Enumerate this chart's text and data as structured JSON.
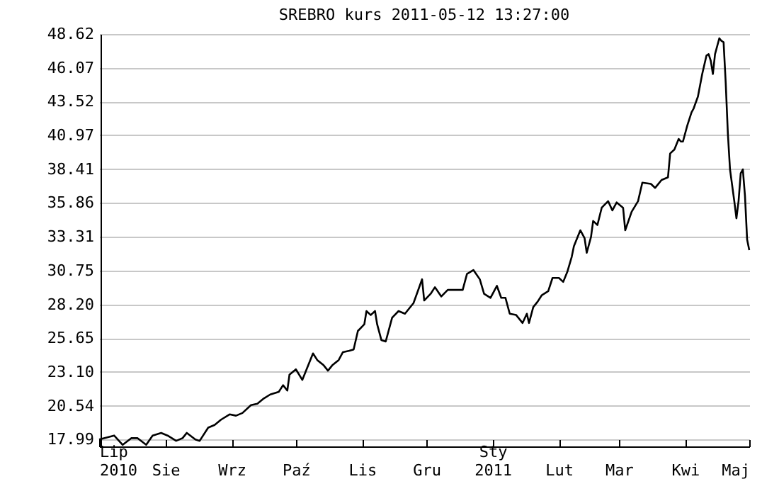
{
  "chart_data": {
    "type": "line",
    "title": "SREBRO kurs  2011-05-12 13:27:00",
    "x": [
      "2010-07-01",
      "2010-07-08",
      "2010-07-12",
      "2010-07-16",
      "2010-07-19",
      "2010-07-23",
      "2010-07-26",
      "2010-07-30",
      "2010-08-02",
      "2010-08-06",
      "2010-08-09",
      "2010-08-11",
      "2010-08-15",
      "2010-08-17",
      "2010-08-21",
      "2010-08-24",
      "2010-08-27",
      "2010-08-31",
      "2010-09-03",
      "2010-09-06",
      "2010-09-10",
      "2010-09-13",
      "2010-09-16",
      "2010-09-19",
      "2010-09-23",
      "2010-09-25",
      "2010-09-27",
      "2010-09-28",
      "2010-10-01",
      "2010-10-04",
      "2010-10-06",
      "2010-10-09",
      "2010-10-11",
      "2010-10-14",
      "2010-10-16",
      "2010-10-18",
      "2010-10-21",
      "2010-10-23",
      "2010-10-26",
      "2010-10-28",
      "2010-10-30",
      "2010-11-02",
      "2010-11-03",
      "2010-11-05",
      "2010-11-07",
      "2010-11-08",
      "2010-11-10",
      "2010-11-12",
      "2010-11-15",
      "2010-11-18",
      "2010-11-21",
      "2010-11-25",
      "2010-11-27",
      "2010-11-29",
      "2010-11-30",
      "2010-12-03",
      "2010-12-05",
      "2010-12-08",
      "2010-12-11",
      "2010-12-15",
      "2010-12-18",
      "2010-12-20",
      "2010-12-23",
      "2010-12-26",
      "2010-12-28",
      "2010-12-31",
      "2011-01-03",
      "2011-01-05",
      "2011-01-07",
      "2011-01-09",
      "2011-01-12",
      "2011-01-15",
      "2011-01-17",
      "2011-01-18",
      "2011-01-20",
      "2011-01-22",
      "2011-01-24",
      "2011-01-27",
      "2011-01-29",
      "2011-02-01",
      "2011-02-03",
      "2011-02-05",
      "2011-02-07",
      "2011-02-08",
      "2011-02-11",
      "2011-02-13",
      "2011-02-14",
      "2011-02-16",
      "2011-02-17",
      "2011-02-19",
      "2011-02-21",
      "2011-02-24",
      "2011-02-26",
      "2011-02-28",
      "2011-03-03",
      "2011-03-04",
      "2011-03-07",
      "2011-03-10",
      "2011-03-12",
      "2011-03-16",
      "2011-03-18",
      "2011-03-21",
      "2011-03-24",
      "2011-03-25",
      "2011-03-27",
      "2011-03-29",
      "2011-03-30",
      "2011-03-31",
      "2011-04-02",
      "2011-04-04",
      "2011-04-05",
      "2011-04-07",
      "2011-04-09",
      "2011-04-11",
      "2011-04-12",
      "2011-04-13",
      "2011-04-14",
      "2011-04-15",
      "2011-04-17",
      "2011-04-18",
      "2011-04-19",
      "2011-04-20",
      "2011-04-21",
      "2011-04-22",
      "2011-04-24",
      "2011-04-25",
      "2011-04-26",
      "2011-04-27",
      "2011-04-28",
      "2011-04-29",
      "2011-04-30",
      "2011-05-01"
    ],
    "series": [
      {
        "color": "#000000",
        "values": [
          18.0,
          18.3,
          17.6,
          18.1,
          18.1,
          17.6,
          18.3,
          18.5,
          18.3,
          17.9,
          18.1,
          18.5,
          18.0,
          17.9,
          18.9,
          19.1,
          19.5,
          19.9,
          19.8,
          20.0,
          20.6,
          20.7,
          21.1,
          21.4,
          21.6,
          22.1,
          21.7,
          22.9,
          23.3,
          22.5,
          23.3,
          24.5,
          24.0,
          23.6,
          23.2,
          23.6,
          24.0,
          24.6,
          24.7,
          24.8,
          26.2,
          26.7,
          27.7,
          27.4,
          27.7,
          26.7,
          25.5,
          25.4,
          27.2,
          27.7,
          27.5,
          28.3,
          29.2,
          30.1,
          28.5,
          29.0,
          29.5,
          28.8,
          29.3,
          29.3,
          29.3,
          30.5,
          30.8,
          30.1,
          29.0,
          28.7,
          29.6,
          28.7,
          28.7,
          27.5,
          27.4,
          26.8,
          27.5,
          26.8,
          28.0,
          28.4,
          28.9,
          29.2,
          30.2,
          30.2,
          29.9,
          30.7,
          31.8,
          32.6,
          33.8,
          33.2,
          32.1,
          33.3,
          34.5,
          34.2,
          35.5,
          36.0,
          35.3,
          35.9,
          35.5,
          33.8,
          35.2,
          36.0,
          37.4,
          37.3,
          37.0,
          37.6,
          37.8,
          39.6,
          39.9,
          40.7,
          40.5,
          40.5,
          41.7,
          42.7,
          43.0,
          43.9,
          45.6,
          47.0,
          47.1,
          46.6,
          45.6,
          47.1,
          48.3,
          48.1,
          48.0,
          44.9,
          41.1,
          38.4,
          36.0,
          34.7,
          36.0,
          38.1,
          38.4,
          36.4,
          33.1,
          32.3
        ]
      }
    ],
    "xlim": [
      "2010-07-01",
      "2011-05-01"
    ],
    "xticks": [
      {
        "value": "2010-07-01",
        "label": "Lip\n2010"
      },
      {
        "value": "2010-08-01",
        "label": "Sie"
      },
      {
        "value": "2010-09-01",
        "label": "Wrz"
      },
      {
        "value": "2010-10-01",
        "label": "Paź"
      },
      {
        "value": "2010-11-01",
        "label": "Lis"
      },
      {
        "value": "2010-12-01",
        "label": "Gru"
      },
      {
        "value": "2011-01-01",
        "label": "Sty\n2011"
      },
      {
        "value": "2011-02-01",
        "label": "Lut"
      },
      {
        "value": "2011-03-01",
        "label": "Mar"
      },
      {
        "value": "2011-04-01",
        "label": "Kwi"
      },
      {
        "value": "2011-05-01",
        "label": "Maj"
      }
    ],
    "ylim": [
      17.48,
      48.62
    ],
    "yticks": [
      17.99,
      20.54,
      {
        "value": 23.1,
        "label": "23.10"
      },
      25.65,
      {
        "value": 28.2,
        "label": "28.20"
      },
      30.75,
      33.31,
      35.86,
      38.41,
      40.97,
      43.52,
      46.07,
      48.62
    ],
    "grid": "y",
    "legend": false,
    "marker": "none",
    "line_style": "solid"
  }
}
